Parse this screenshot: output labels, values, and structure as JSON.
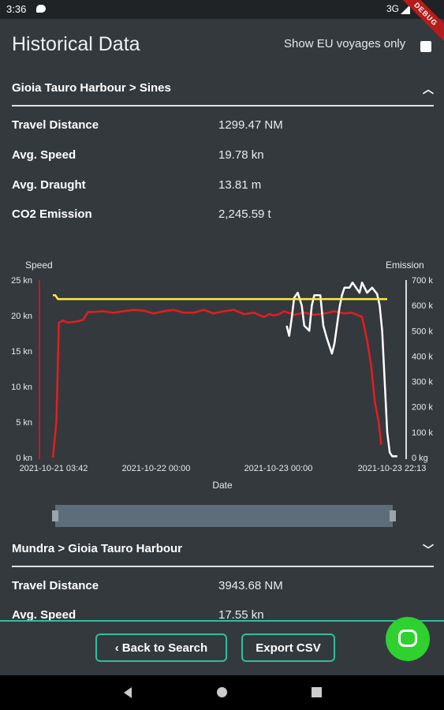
{
  "status_bar": {
    "time": "3:36",
    "network": "3G",
    "ribbon": "DEBUG"
  },
  "header": {
    "title": "Historical Data",
    "eu_filter_label": "Show EU voyages only"
  },
  "voyages": [
    {
      "origin": "Gioia Tauro Harbour",
      "destination": "Sines",
      "expanded": true,
      "stats": [
        {
          "label": "Travel Distance",
          "value": "1299.47 NM"
        },
        {
          "label": "Avg. Speed",
          "value": "19.78 kn"
        },
        {
          "label": "Avg. Draught",
          "value": "13.81 m"
        },
        {
          "label": "CO2 Emission",
          "value": "2,245.59 t"
        }
      ]
    },
    {
      "origin": "Mundra",
      "destination": "Gioia Tauro Harbour",
      "expanded": false,
      "stats": [
        {
          "label": "Travel Distance",
          "value": "3943.68 NM"
        },
        {
          "label": "Avg. Speed",
          "value": "17.55 kn"
        }
      ]
    }
  ],
  "chart_data": {
    "type": "line",
    "xlabel": "Date",
    "left_axis_title": "Speed",
    "right_axis_title": "Emission",
    "x_ticks": [
      "2021-10-21 03:42",
      "2021-10-22 00:00",
      "2021-10-23 00:00",
      "2021-10-23 22:13"
    ],
    "left_ticks": [
      "0 kn",
      "5 kn",
      "10 kn",
      "15 kn",
      "20 kn",
      "25 kn"
    ],
    "right_ticks": [
      "0 kg",
      "100 k",
      "200 k",
      "300 k",
      "400 k",
      "500 k",
      "600 k",
      "700 k"
    ],
    "ylim_left": [
      0,
      25
    ],
    "ylim_right": [
      0,
      700
    ],
    "x_range_hours": [
      0,
      66.5
    ],
    "series": [
      {
        "axis": "left",
        "color": "#e81c1c",
        "points": [
          [
            0,
            0
          ],
          [
            0.7,
            5
          ],
          [
            1.2,
            19
          ],
          [
            2,
            19.3
          ],
          [
            3,
            19
          ],
          [
            5,
            19.2
          ],
          [
            6,
            19.4
          ],
          [
            7,
            20.5
          ],
          [
            8,
            20.5
          ],
          [
            10,
            20.6
          ],
          [
            12,
            20.4
          ],
          [
            14,
            20.6
          ],
          [
            16,
            20.8
          ],
          [
            18,
            20.7
          ],
          [
            20,
            20.3
          ],
          [
            22,
            20.6
          ],
          [
            24,
            20.8
          ],
          [
            26,
            20.4
          ],
          [
            28,
            20.4
          ],
          [
            30,
            20.8
          ],
          [
            32,
            20.3
          ],
          [
            34,
            20.6
          ],
          [
            36,
            20.8
          ],
          [
            38,
            20.2
          ],
          [
            40,
            20.4
          ],
          [
            42,
            19.8
          ],
          [
            43,
            20.2
          ],
          [
            44,
            20.0
          ],
          [
            45,
            20.2
          ],
          [
            46,
            20.6
          ],
          [
            48,
            20.1
          ],
          [
            50,
            20.4
          ],
          [
            52,
            20.1
          ],
          [
            54,
            20.3
          ],
          [
            56,
            20.6
          ],
          [
            58,
            20.3
          ],
          [
            59.5,
            20.4
          ],
          [
            60.5,
            20.1
          ],
          [
            61.5,
            19.8
          ],
          [
            62.5,
            16.5
          ],
          [
            63.3,
            13
          ],
          [
            64,
            8
          ],
          [
            64.8,
            5
          ],
          [
            65.3,
            1.8
          ]
        ]
      },
      {
        "axis": "right",
        "color": "#ffffff",
        "points": [
          [
            46.5,
            520
          ],
          [
            47,
            480
          ],
          [
            47.5,
            550
          ],
          [
            48,
            630
          ],
          [
            48.7,
            650
          ],
          [
            49.5,
            600
          ],
          [
            50,
            520
          ],
          [
            51,
            500
          ],
          [
            51.5,
            600
          ],
          [
            52,
            640
          ],
          [
            53.2,
            640
          ],
          [
            53.8,
            520
          ],
          [
            54.5,
            470
          ],
          [
            55.5,
            410
          ],
          [
            56,
            450
          ],
          [
            57,
            590
          ],
          [
            57.5,
            640
          ],
          [
            58,
            670
          ],
          [
            59,
            670
          ],
          [
            59.6,
            690
          ],
          [
            61,
            650
          ],
          [
            61.5,
            690
          ],
          [
            62.5,
            650
          ],
          [
            63.5,
            670
          ],
          [
            64.5,
            645
          ],
          [
            65,
            600
          ],
          [
            65.5,
            500
          ],
          [
            66,
            300
          ],
          [
            66.5,
            100
          ],
          [
            67,
            20
          ],
          [
            67.5,
            5
          ],
          [
            68,
            5
          ],
          [
            68.5,
            5
          ]
        ]
      },
      {
        "axis": "right",
        "color": "#ffeb3b",
        "points": [
          [
            0,
            640
          ],
          [
            0.5,
            640
          ],
          [
            1,
            625
          ],
          [
            66.5,
            625
          ]
        ]
      }
    ]
  },
  "buttons": {
    "back": "Back to Search",
    "export": "Export CSV"
  },
  "icons": {
    "collapse": "chevron-up-icon",
    "expand": "chevron-down-icon",
    "back": "chevron-left-icon",
    "fab": "chat-icon",
    "nav": [
      "nav-back-icon",
      "nav-home-icon",
      "nav-recents-icon"
    ]
  }
}
